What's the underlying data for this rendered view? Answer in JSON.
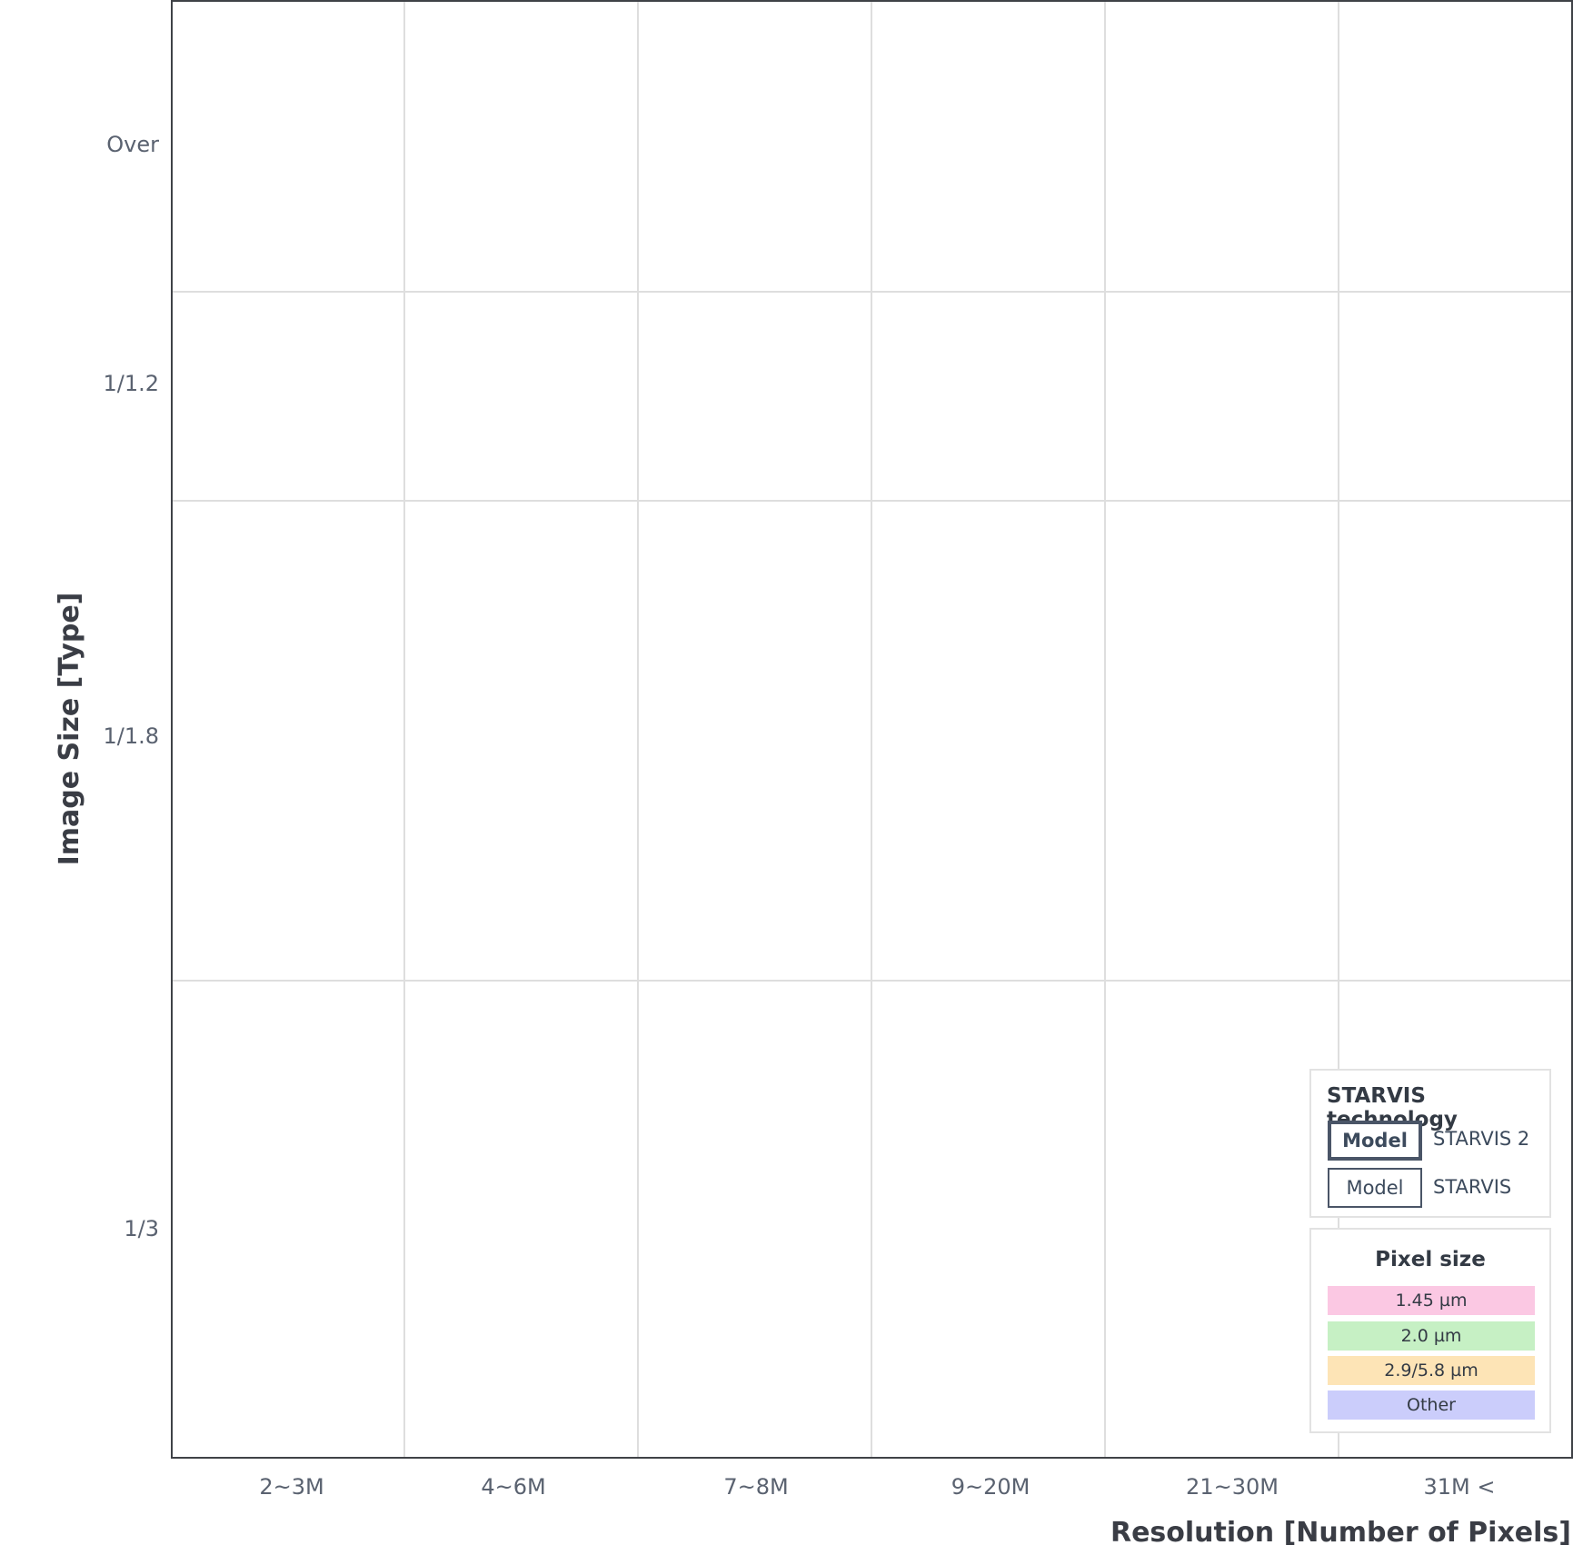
{
  "chart_data": {
    "type": "table",
    "xlabel": "Resolution [Number of Pixels]",
    "ylabel": "Image Size [Type]",
    "x_categories": [
      "2~3M",
      "4~6M",
      "7~8M",
      "9~20M",
      "21~30M",
      "31M <"
    ],
    "y_categories": [
      "Over",
      "1/1.2",
      "1/1.8",
      "1/3"
    ],
    "grid": true,
    "legend_placement": "bottom-right",
    "series": []
  },
  "legend": {
    "technology": {
      "title": "STARVIS technology",
      "items": [
        {
          "chip": "Model",
          "label": "STARVIS 2"
        },
        {
          "chip": "Model",
          "label": "STARVIS"
        }
      ]
    },
    "pixel_size": {
      "title": "Pixel size",
      "items": [
        {
          "label": "1.45 µm",
          "color": "#fbc8e3"
        },
        {
          "label": "2.0 µm",
          "color": "#c6f0c4"
        },
        {
          "label": "2.9/5.8 µm",
          "color": "#fde4b6"
        },
        {
          "label": "Other",
          "color": "#cbcdfb"
        }
      ]
    }
  },
  "colors": {
    "frame": "#3f4247",
    "grid": "#dedede",
    "tick_text": "#5a6270",
    "chip_border": "#4a5567"
  }
}
